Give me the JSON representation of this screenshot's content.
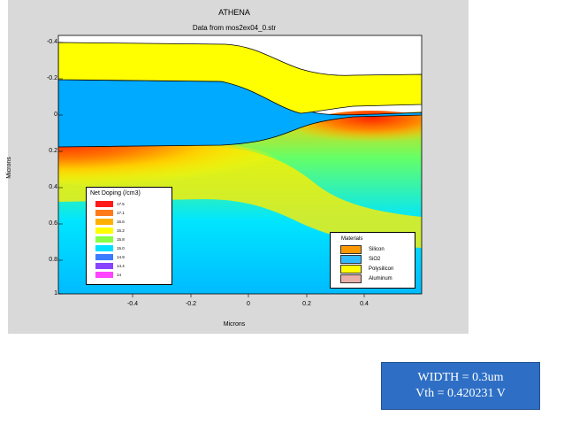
{
  "figure": {
    "title": "ATHENA",
    "subtitle": "Data from mos2ex04_0.str",
    "xlabel": "Microns",
    "ylabel": "Microns",
    "y_ticks": [
      "-0.4",
      "-0.2",
      "0",
      "0.2",
      "0.4",
      "0.6",
      "0.8",
      "1"
    ],
    "x_ticks": [
      "-0.4",
      "-0.2",
      "0",
      "0.2",
      "0.4"
    ],
    "colors": {
      "polysilicon": "#ffff00",
      "sio2": "#00aaff",
      "silicon_low": "#00ccff",
      "silicon_high": "#ff2200",
      "background": "#d9d9d9"
    }
  },
  "doping_legend": {
    "title": "Net Doping (/cm3)",
    "entries": [
      {
        "label": "17.5",
        "color": "#ff1a1a"
      },
      {
        "label": "17.1",
        "color": "#ff7a1a"
      },
      {
        "label": "16.6",
        "color": "#ffb000"
      },
      {
        "label": "16.2",
        "color": "#ffff00"
      },
      {
        "label": "15.8",
        "color": "#88ff44"
      },
      {
        "label": "15.0",
        "color": "#00e0ff"
      },
      {
        "label": "14.9",
        "color": "#3a7bff"
      },
      {
        "label": "14.4",
        "color": "#8844ff"
      },
      {
        "label": "14",
        "color": "#ff44ff"
      }
    ]
  },
  "materials_legend": {
    "title": "Materials",
    "entries": [
      {
        "label": "Silicon",
        "color": "#ff9900"
      },
      {
        "label": "SiO2",
        "color": "#33bbff"
      },
      {
        "label": "Polysilicon",
        "color": "#ffff00"
      },
      {
        "label": "Aluminum",
        "color": "#e8b0a8"
      }
    ]
  },
  "info_box": {
    "line1": "WIDTH = 0.3um",
    "line2": "Vth = 0.420231 V"
  }
}
